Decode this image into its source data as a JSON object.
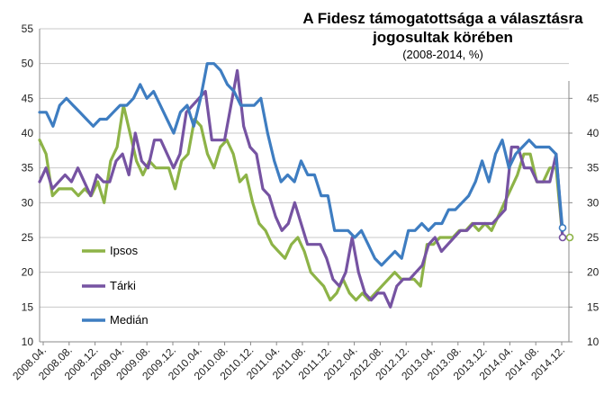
{
  "chart_data": {
    "type": "line",
    "title_line1": "A Fidesz támogatottsága  a választásra",
    "title_line2": "jogosultak körében",
    "subtitle": "(2008-2014, %)",
    "ylim": [
      10,
      55
    ],
    "y_ticks": [
      10,
      15,
      20,
      25,
      30,
      35,
      40,
      45,
      50,
      55
    ],
    "y2_ticks": [
      10,
      15,
      20,
      25,
      30,
      35,
      40,
      45
    ],
    "x_ticks": [
      "2008.04.",
      "2008.08.",
      "2008.12.",
      "2009.04.",
      "2009.08.",
      "2009.12.",
      "2010.04.",
      "2010.08.",
      "2010.12.",
      "2011.04.",
      "2011.08.",
      "2011.12.",
      "2012.04.",
      "2012.08.",
      "2012.12.",
      "2013.04.",
      "2013.08.",
      "2013.12.",
      "2014.04.",
      "2014.08.",
      "2014.12."
    ],
    "grid": true,
    "series": [
      {
        "name": "Ipsos",
        "color": "#8db347",
        "values": [
          39,
          37,
          31,
          32,
          32,
          32,
          31,
          32,
          31,
          33,
          30,
          36,
          38,
          44,
          40,
          36,
          34,
          36,
          35,
          35,
          35,
          32,
          36,
          37,
          42,
          41,
          37,
          35,
          38,
          39,
          37,
          33,
          34,
          30,
          27,
          26,
          24,
          23,
          22,
          24,
          25,
          23,
          20,
          19,
          18,
          16,
          17,
          19,
          17,
          16,
          17,
          16,
          17,
          18,
          19,
          20,
          19,
          19,
          19,
          18,
          24,
          24,
          25,
          25,
          25,
          26,
          26,
          27,
          26,
          27,
          26,
          28,
          30,
          32,
          34,
          37,
          37,
          33,
          33,
          35,
          35,
          25
        ]
      },
      {
        "name": "Tárki",
        "color": "#7653a2",
        "values": [
          33,
          35,
          32,
          33,
          34,
          33,
          35,
          33,
          31,
          34,
          33,
          33,
          36,
          37,
          34,
          40,
          36,
          35,
          39,
          39,
          37,
          35,
          37,
          43,
          44,
          45,
          46,
          39,
          39,
          39,
          44,
          49,
          41,
          38,
          37,
          32,
          31,
          28,
          26,
          27,
          30,
          27,
          24,
          24,
          24,
          22,
          19,
          18,
          20,
          25,
          20,
          17,
          16,
          17,
          17,
          15,
          18,
          19,
          19,
          20,
          21,
          24,
          25,
          23,
          24,
          25,
          26,
          26,
          27,
          27,
          27,
          27,
          28,
          29,
          38,
          38,
          35,
          35,
          33,
          33,
          33,
          37,
          25
        ]
      },
      {
        "name": "Medián",
        "color": "#3e7dc1",
        "values": [
          43,
          43,
          41,
          44,
          45,
          44,
          43,
          42,
          41,
          42,
          42,
          43,
          44,
          44,
          45,
          47,
          45,
          46,
          44,
          42,
          40,
          43,
          44,
          41,
          45,
          50,
          50,
          49,
          47,
          46,
          44,
          44,
          44,
          45,
          40,
          36,
          33,
          34,
          33,
          36,
          34,
          34,
          31,
          31,
          26,
          26,
          26,
          25,
          26,
          24,
          22,
          21,
          22,
          23,
          22,
          26,
          26,
          27,
          26,
          27,
          27,
          29,
          29,
          30,
          31,
          33,
          36,
          33,
          37,
          39,
          35,
          37,
          38,
          39,
          38,
          38,
          38,
          37,
          26
        ]
      }
    ]
  }
}
